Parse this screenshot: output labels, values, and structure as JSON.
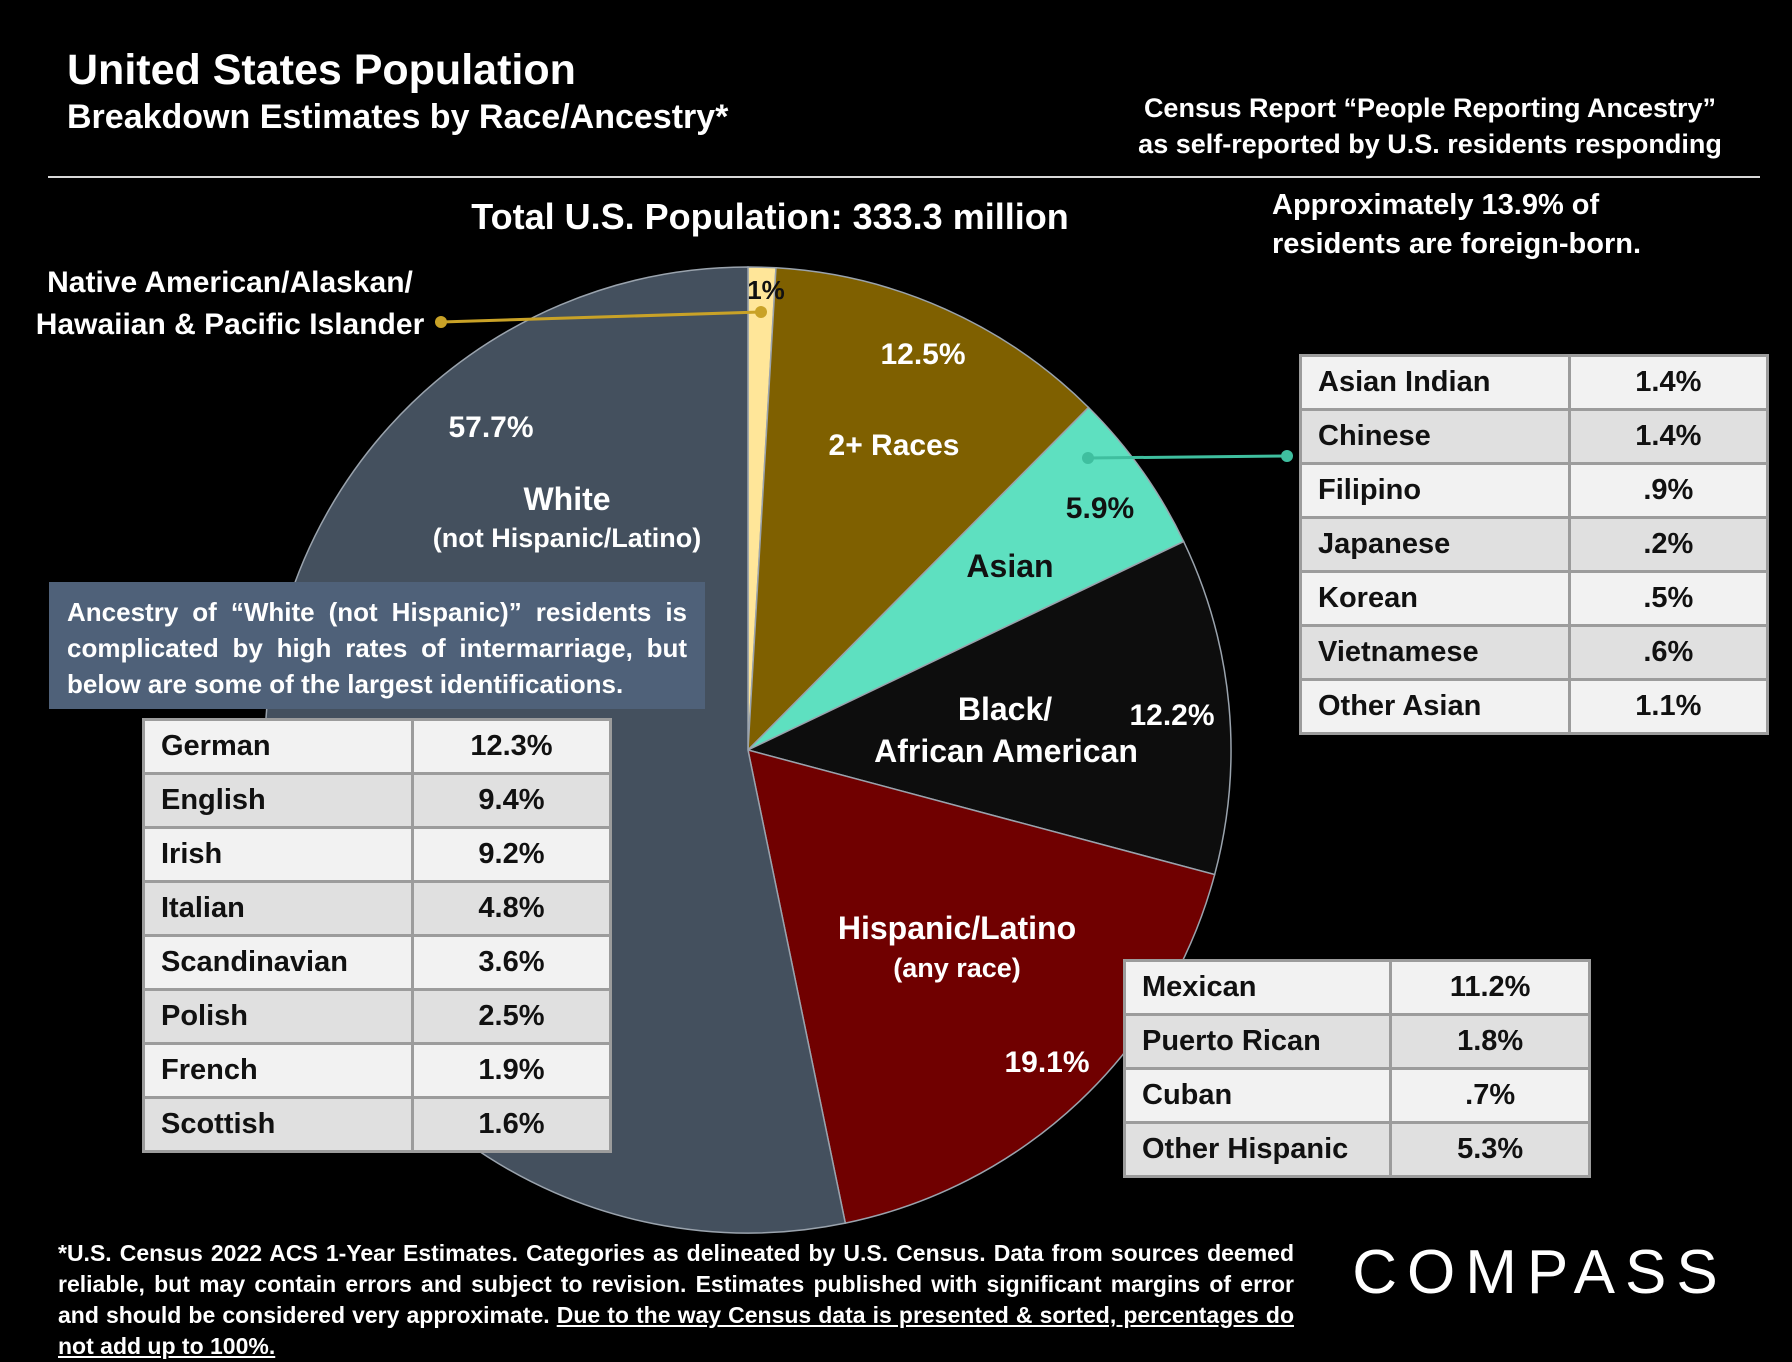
{
  "header": {
    "title": "United States Population",
    "subtitle": "Breakdown Estimates by Race/Ancestry*",
    "source_line1": "Census Report “People Reporting Ancestry”",
    "source_line2": "as self-reported by U.S. residents responding",
    "total": "Total U.S. Population:  333.3 million",
    "foreign_line1": "Approximately 13.9% of",
    "foreign_line2": "residents are foreign-born."
  },
  "chart_data": {
    "type": "pie",
    "title": "Total U.S. Population:  333.3 million",
    "slices": [
      {
        "name": "Native American/Alaskan/ Hawaiian & Pacific Islander",
        "value": 1,
        "value_label": "1%",
        "color": "#ffe699"
      },
      {
        "name": "2+ Races",
        "value": 12.5,
        "value_label": "12.5%",
        "color": "#7f6000"
      },
      {
        "name": "Asian",
        "value": 5.9,
        "value_label": "5.9%",
        "color": "#5ee0c0"
      },
      {
        "name": "Black/ African American",
        "value": 12.2,
        "value_label": "12.2%",
        "color": "#0d0d0d"
      },
      {
        "name": "Hispanic/Latino (any race)",
        "value": 19.1,
        "value_label": "19.1%",
        "color": "#700000"
      },
      {
        "name": "White (not Hispanic/Latino)",
        "value": 57.7,
        "value_label": "57.7%",
        "color": "#44505e"
      }
    ],
    "labels": {
      "native_line1": "Native American/Alaskan/",
      "native_line2": "Hawaiian & Pacific Islander",
      "races_name": "2+ Races",
      "asian_name": "Asian",
      "black_line1": "Black/",
      "black_line2": "African American",
      "hispanic_line1": "Hispanic/Latino",
      "hispanic_line2": "(any race)",
      "white_line1": "White",
      "white_line2": "(not Hispanic/Latino)"
    }
  },
  "white_note": "Ancestry of “White (not Hispanic)” residents is complicated by high rates of intermarriage, but below are some of the largest identifications.",
  "white_table": [
    {
      "label": "German",
      "value": "12.3%"
    },
    {
      "label": "English",
      "value": "9.4%"
    },
    {
      "label": "Irish",
      "value": "9.2%"
    },
    {
      "label": "Italian",
      "value": "4.8%"
    },
    {
      "label": "Scandinavian",
      "value": "3.6%"
    },
    {
      "label": "Polish",
      "value": "2.5%"
    },
    {
      "label": "French",
      "value": "1.9%"
    },
    {
      "label": "Scottish",
      "value": "1.6%"
    }
  ],
  "asian_table": [
    {
      "label": "Asian Indian",
      "value": "1.4%"
    },
    {
      "label": "Chinese",
      "value": "1.4%"
    },
    {
      "label": "Filipino",
      "value": ".9%"
    },
    {
      "label": "Japanese",
      "value": ".2%"
    },
    {
      "label": "Korean",
      "value": ".5%"
    },
    {
      "label": "Vietnamese",
      "value": ".6%"
    },
    {
      "label": "Other Asian",
      "value": "1.1%"
    }
  ],
  "hispanic_table": [
    {
      "label": "Mexican",
      "value": "11.2%"
    },
    {
      "label": "Puerto Rican",
      "value": "1.8%"
    },
    {
      "label": "Cuban",
      "value": ".7%"
    },
    {
      "label": "Other Hispanic",
      "value": "5.3%"
    }
  ],
  "footnote": {
    "text": "*U.S. Census 2022 ACS 1-Year Estimates. Categories as delineated by U.S. Census. Data from sources deemed reliable, but may contain errors and subject to revision. Estimates published with significant margins of error and should be considered very approximate. ",
    "underlined": "Due to the way Census data is presented & sorted, percentages do not add up to 100%."
  },
  "logo": {
    "text": "COMPASS"
  },
  "colors": {
    "leader_native": "#c9a227",
    "leader_asian": "#3fbf9f",
    "note_bg": "#4f6179"
  }
}
